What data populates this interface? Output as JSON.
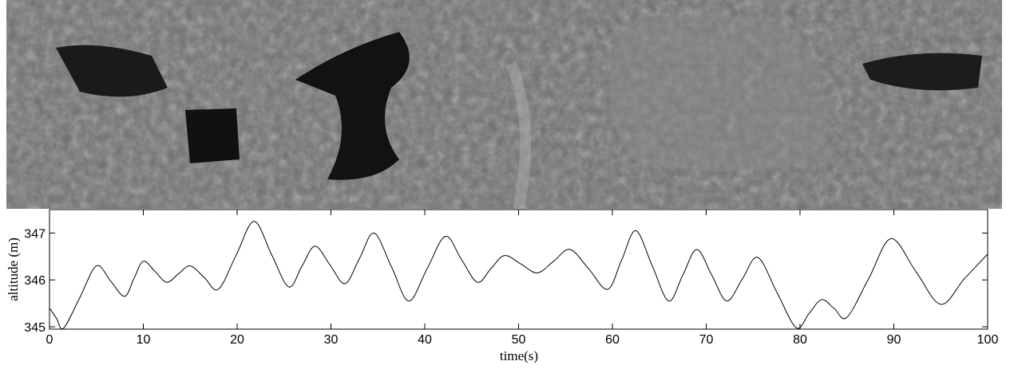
{
  "chart_data": {
    "type": "line",
    "xlabel": "time(s)",
    "ylabel": "altitude (m)",
    "xlim": [
      0,
      100
    ],
    "ylim": [
      344.95,
      347.5
    ],
    "xticks": [
      0,
      10,
      20,
      30,
      40,
      50,
      60,
      70,
      80,
      90,
      100
    ],
    "yticks": [
      345,
      346,
      347
    ],
    "color": "#000000",
    "x": [
      0,
      0.75,
      1.5,
      3.25,
      5,
      6.5,
      8,
      9,
      10,
      11.25,
      12.5,
      13.75,
      15,
      16.5,
      18,
      19.9,
      21.8,
      23.65,
      25.5,
      26.9,
      28.3,
      29.9,
      31.5,
      33.05,
      34.6,
      36.45,
      38.3,
      40.25,
      42.2,
      43.9,
      45.6,
      47.05,
      48.5,
      50.25,
      52,
      53.75,
      55.5,
      57.5,
      59.5,
      61,
      62.5,
      64.25,
      66,
      67.5,
      69,
      70.6,
      72.2,
      73.85,
      75.5,
      77.55,
      79.6,
      80.95,
      82.3,
      83.65,
      85,
      87.35,
      89.7,
      92.35,
      95,
      97.5,
      100
    ],
    "values": [
      345.4,
      345.18,
      344.97,
      345.63,
      346.3,
      345.98,
      345.65,
      346.03,
      346.4,
      346.18,
      345.95,
      346.13,
      346.3,
      346.05,
      345.8,
      346.53,
      347.25,
      346.55,
      345.85,
      346.29,
      346.72,
      346.32,
      345.92,
      346.46,
      347.0,
      346.28,
      345.55,
      346.24,
      346.93,
      346.44,
      345.95,
      346.24,
      346.52,
      346.34,
      346.15,
      346.4,
      346.65,
      346.23,
      345.8,
      346.43,
      347.05,
      346.3,
      345.55,
      346.1,
      346.65,
      346.1,
      345.55,
      346.02,
      346.48,
      345.73,
      344.98,
      345.28,
      345.58,
      345.39,
      345.2,
      346.04,
      346.88,
      346.18,
      345.48,
      346.02,
      346.55
    ]
  }
}
